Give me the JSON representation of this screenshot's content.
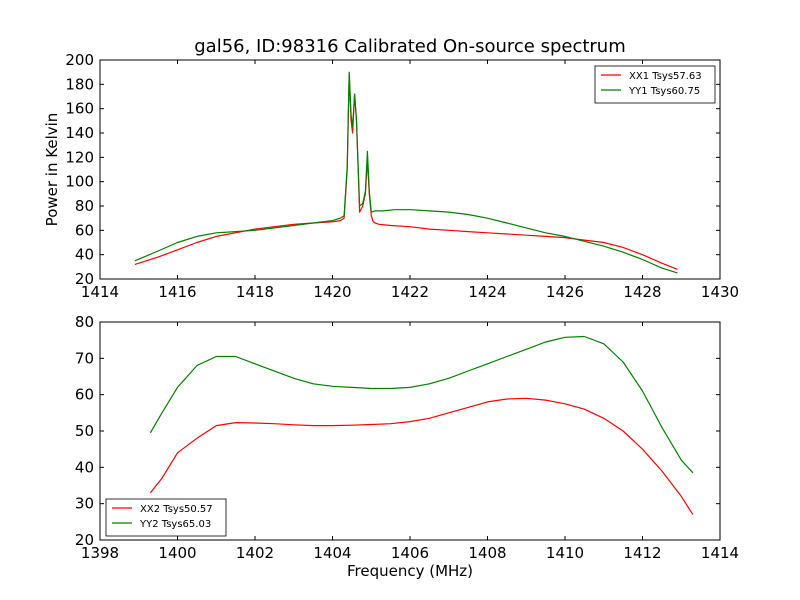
{
  "title": "gal56, ID:98316 Calibrated On-source spectrum",
  "colors": {
    "red": "#ff0000",
    "green": "#008000"
  },
  "chart_data": [
    {
      "type": "line",
      "title": "gal56, ID:98316 Calibrated On-source spectrum",
      "xlabel": "",
      "ylabel": "Power in Kelvin",
      "xlim": [
        1414,
        1430
      ],
      "ylim": [
        20,
        200
      ],
      "xticks": [
        "1414",
        "1416",
        "1418",
        "1420",
        "1422",
        "1424",
        "1426",
        "1428",
        "1430"
      ],
      "yticks": [
        "20",
        "40",
        "60",
        "80",
        "100",
        "120",
        "140",
        "160",
        "180",
        "200"
      ],
      "legend_position": "top-right",
      "series": [
        {
          "name": "XX1 Tsys57.63",
          "color": "#ff0000",
          "x": [
            1414.9,
            1415.5,
            1416,
            1416.5,
            1417,
            1417.5,
            1418,
            1418.5,
            1419,
            1419.5,
            1420,
            1420.2,
            1420.3,
            1420.38,
            1420.43,
            1420.48,
            1420.52,
            1420.57,
            1420.62,
            1420.7,
            1420.78,
            1420.85,
            1420.9,
            1420.95,
            1421.0,
            1421.05,
            1421.1,
            1421.2,
            1421.5,
            1422,
            1422.5,
            1423,
            1423.5,
            1424,
            1424.5,
            1425,
            1425.5,
            1426,
            1426.5,
            1427,
            1427.5,
            1428,
            1428.5,
            1428.9
          ],
          "y": [
            32,
            38,
            44,
            50,
            55,
            58,
            61,
            63,
            65,
            66,
            67,
            68,
            70,
            110,
            188,
            150,
            140,
            172,
            150,
            75,
            80,
            90,
            118,
            90,
            72,
            67,
            66,
            65,
            64,
            63,
            61,
            60,
            59,
            58,
            57,
            56,
            55,
            54,
            52,
            50,
            46,
            40,
            33,
            28
          ]
        },
        {
          "name": "YY1 Tsys60.75",
          "color": "#008000",
          "x": [
            1414.9,
            1415.5,
            1416,
            1416.5,
            1417,
            1417.5,
            1418,
            1418.5,
            1419,
            1419.5,
            1420,
            1420.2,
            1420.3,
            1420.38,
            1420.43,
            1420.48,
            1420.52,
            1420.57,
            1420.62,
            1420.7,
            1420.78,
            1420.85,
            1420.9,
            1420.95,
            1421.0,
            1421.1,
            1421.3,
            1421.6,
            1422,
            1422.5,
            1423,
            1423.5,
            1424,
            1424.5,
            1425,
            1425.5,
            1426,
            1426.5,
            1427,
            1427.5,
            1428,
            1428.5,
            1428.9
          ],
          "y": [
            35,
            43,
            50,
            55,
            58,
            59,
            60,
            62,
            64,
            66,
            68,
            70,
            72,
            112,
            190,
            155,
            145,
            172,
            150,
            80,
            82,
            92,
            125,
            92,
            75,
            76,
            76,
            77,
            77,
            76,
            75,
            73,
            70,
            66,
            62,
            58,
            55,
            51,
            47,
            42,
            36,
            29,
            25
          ]
        }
      ]
    },
    {
      "type": "line",
      "title": "",
      "xlabel": "Frequency (MHz)",
      "ylabel": "",
      "xlim": [
        1398,
        1414
      ],
      "ylim": [
        20,
        80
      ],
      "xticks": [
        "1398",
        "1400",
        "1402",
        "1404",
        "1406",
        "1408",
        "1410",
        "1412",
        "1414"
      ],
      "yticks": [
        "20",
        "30",
        "40",
        "50",
        "60",
        "70",
        "80"
      ],
      "legend_position": "bottom-left",
      "series": [
        {
          "name": "XX2 Tsys50.57",
          "color": "#ff0000",
          "x": [
            1399.3,
            1399.6,
            1400,
            1400.5,
            1401,
            1401.5,
            1402,
            1402.5,
            1403,
            1403.5,
            1404,
            1404.5,
            1405,
            1405.5,
            1406,
            1406.5,
            1407,
            1407.5,
            1408,
            1408.5,
            1409,
            1409.5,
            1410,
            1410.5,
            1411,
            1411.5,
            1412,
            1412.5,
            1413,
            1413.3
          ],
          "y": [
            33,
            37,
            44,
            48,
            51.5,
            52.3,
            52.2,
            52,
            51.7,
            51.5,
            51.5,
            51.6,
            51.8,
            52,
            52.6,
            53.5,
            55,
            56.5,
            58,
            58.8,
            59,
            58.5,
            57.5,
            56,
            53.5,
            50,
            45,
            39,
            32,
            27
          ]
        },
        {
          "name": "YY2 Tsys65.03",
          "color": "#008000",
          "x": [
            1399.3,
            1399.6,
            1400,
            1400.5,
            1401,
            1401.5,
            1402,
            1402.5,
            1403,
            1403.5,
            1404,
            1404.5,
            1405,
            1405.5,
            1406,
            1406.5,
            1407,
            1407.5,
            1408,
            1408.5,
            1409,
            1409.5,
            1410,
            1410.5,
            1411,
            1411.5,
            1412,
            1412.5,
            1413,
            1413.3
          ],
          "y": [
            49.5,
            55,
            62,
            68,
            70.5,
            70.5,
            68.5,
            66.5,
            64.5,
            63,
            62.3,
            62,
            61.7,
            61.7,
            62,
            63,
            64.5,
            66.5,
            68.5,
            70.5,
            72.5,
            74.5,
            75.8,
            76,
            74,
            69,
            61,
            51,
            42,
            38.5
          ]
        }
      ]
    }
  ]
}
